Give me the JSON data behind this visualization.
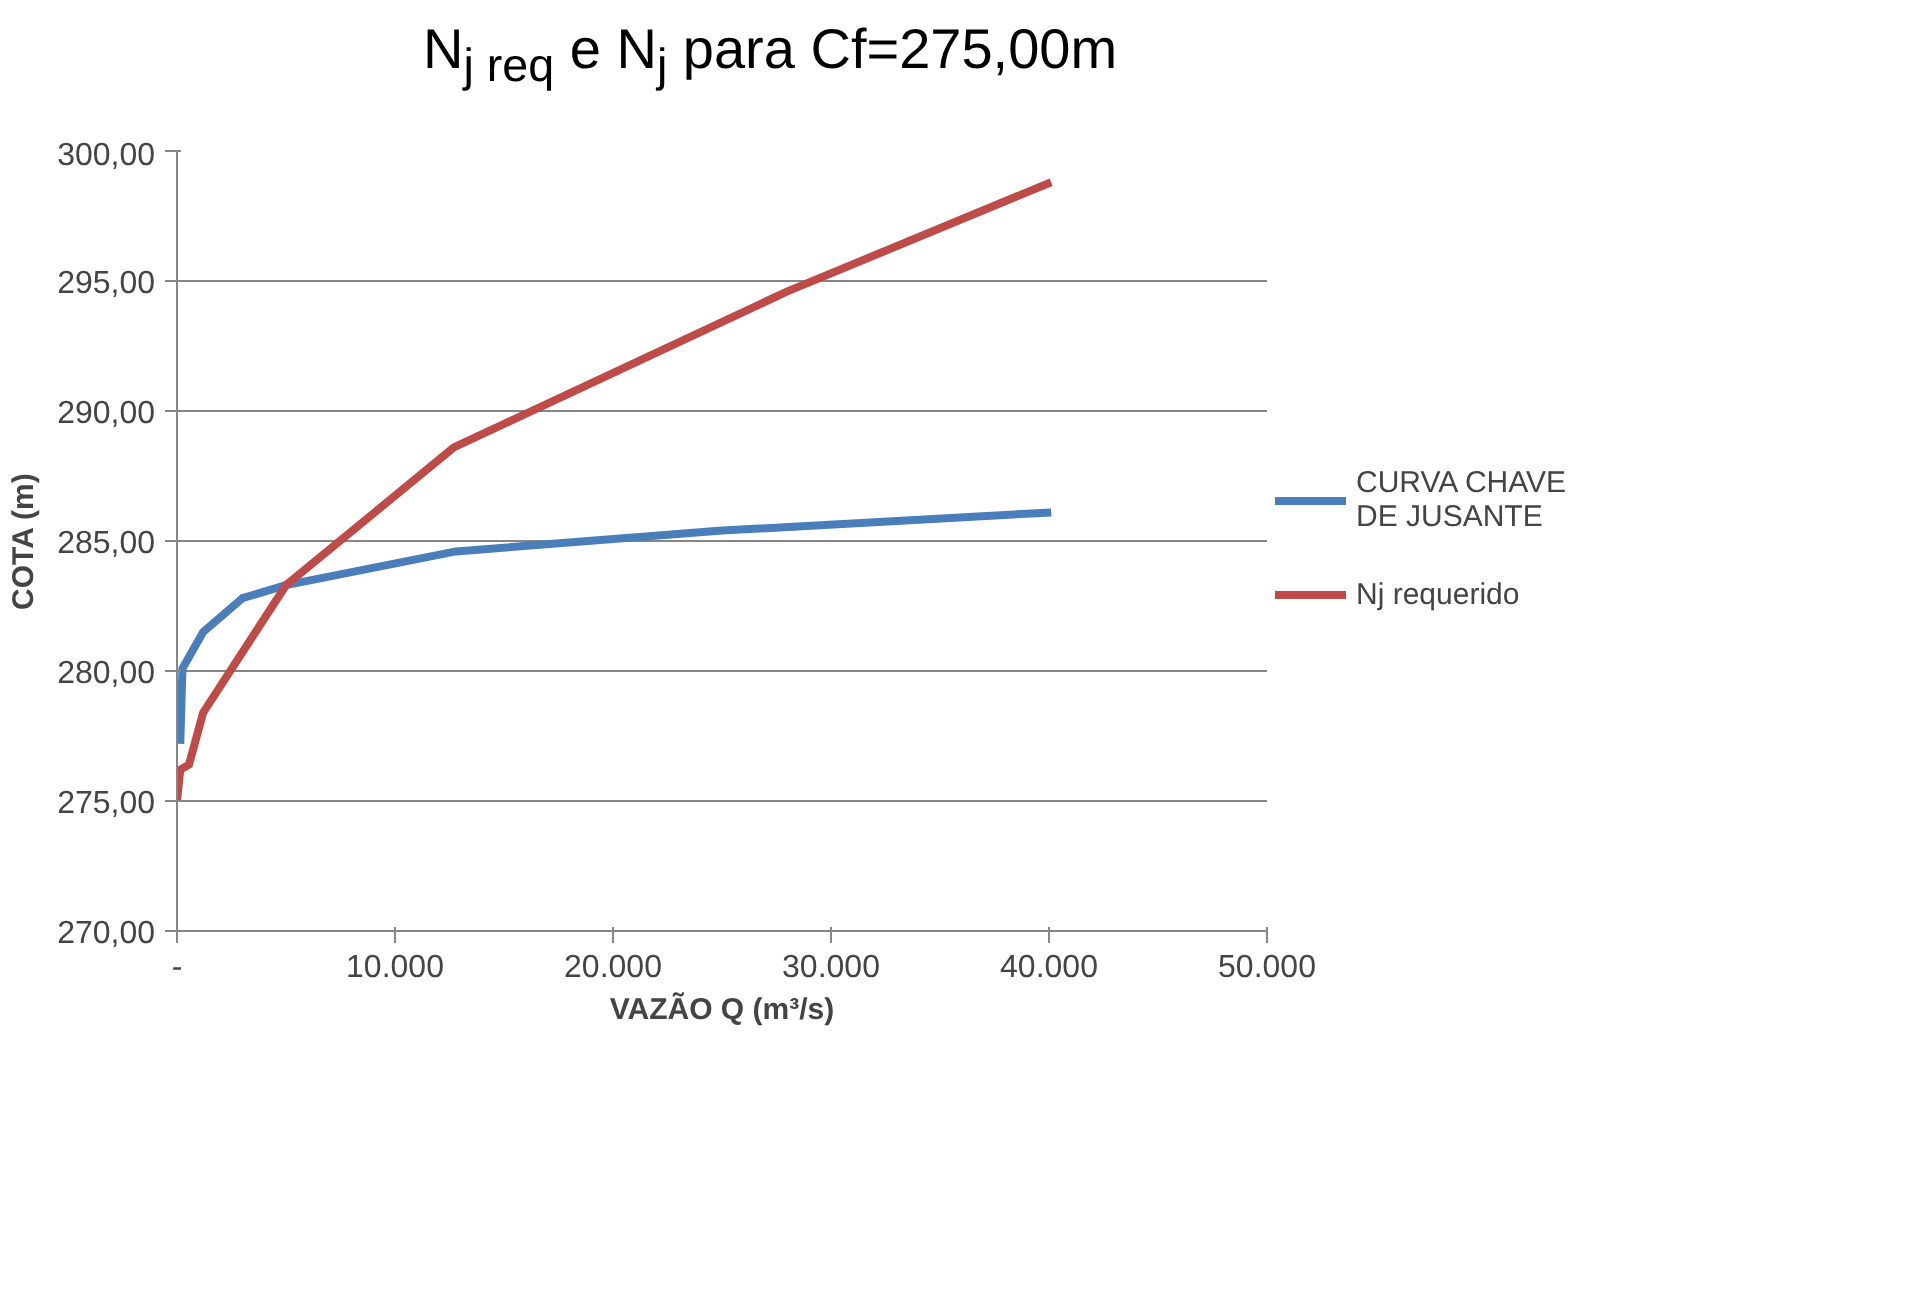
{
  "chart_data": {
    "type": "line",
    "title": "N$_{j req}$ e N$_{j}$ para Cf=275,00m",
    "xlabel": "VAZÃO Q (m³/s)",
    "ylabel": "COTA (m)",
    "xlim": [
      0,
      50000
    ],
    "ylim": [
      270,
      300
    ],
    "xticks": [
      {
        "value": 0,
        "label": "-"
      },
      {
        "value": 10000,
        "label": "10.000"
      },
      {
        "value": 20000,
        "label": "20.000"
      },
      {
        "value": 30000,
        "label": "30.000"
      },
      {
        "value": 40000,
        "label": "40.000"
      },
      {
        "value": 50000,
        "label": "50.000"
      }
    ],
    "yticks": [
      {
        "value": 270,
        "label": "270,00"
      },
      {
        "value": 275,
        "label": "275,00"
      },
      {
        "value": 280,
        "label": "280,00"
      },
      {
        "value": 285,
        "label": "285,00"
      },
      {
        "value": 290,
        "label": "290,00"
      },
      {
        "value": 295,
        "label": "295,00"
      },
      {
        "value": 300,
        "label": "300,00"
      }
    ],
    "grid": "y",
    "legend": "right",
    "marker": "none",
    "line_style": "solid",
    "series": [
      {
        "name": "CURVA CHAVE DE JUSANTE",
        "color": "#4a7ebb",
        "x": [
          150,
          250,
          1200,
          3000,
          5000,
          12800,
          25000,
          40100
        ],
        "values": [
          277.2,
          280.1,
          281.5,
          282.8,
          283.3,
          284.6,
          285.4,
          286.1
        ]
      },
      {
        "name": "Nj requerido",
        "color": "#be4b48",
        "x": [
          0,
          150,
          550,
          1200,
          5000,
          12700,
          28000,
          40100
        ],
        "values": [
          275.0,
          276.2,
          276.4,
          278.4,
          283.3,
          288.6,
          294.6,
          298.8
        ]
      }
    ]
  }
}
